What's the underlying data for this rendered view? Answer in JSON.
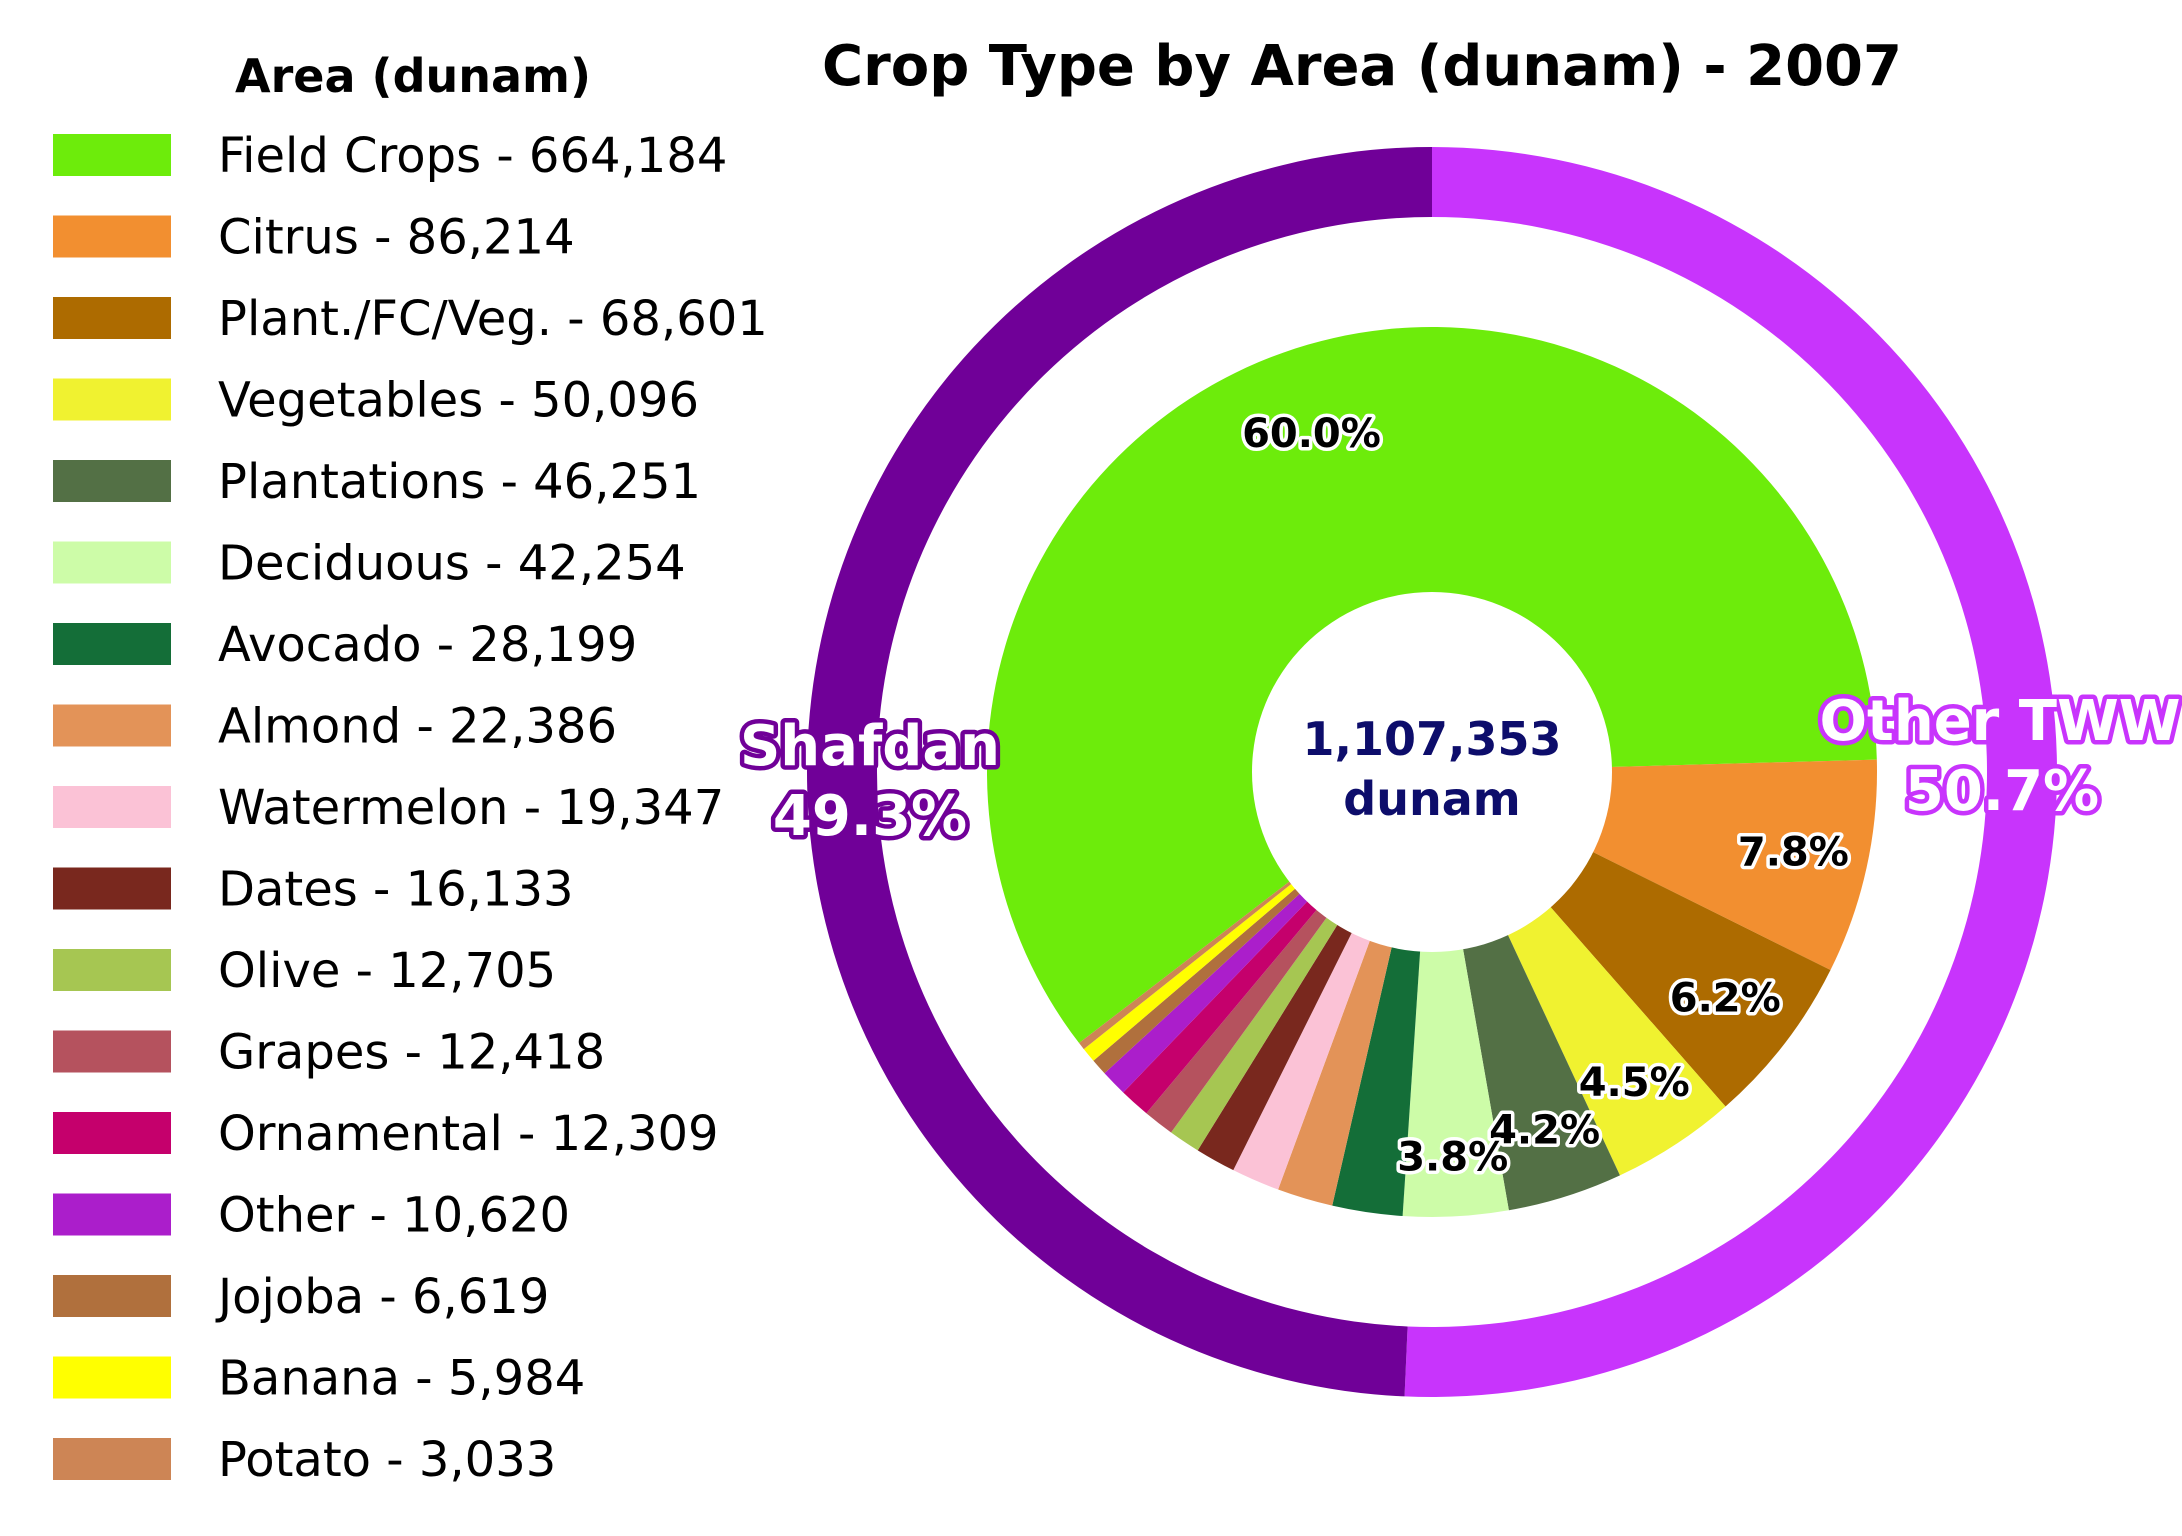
{
  "chart_data": {
    "type": "pie",
    "title": "Crop Type by Area (dunam) - 2007",
    "legend_title": "Area (dunam)",
    "legend_position": "left",
    "center_label": [
      "1,107,353",
      "dunam"
    ],
    "inner": {
      "slices": [
        {
          "label": "Field Crops - 664,184",
          "value": 664184,
          "color": "#6dec0b",
          "pct_label": "60.0%"
        },
        {
          "label": "Citrus - 86,214",
          "value": 86214,
          "color": "#f28f30",
          "pct_label": "7.8%"
        },
        {
          "label": "Plant./FC/Veg. - 68,601",
          "value": 68601,
          "color": "#ad6b00",
          "pct_label": "6.2%"
        },
        {
          "label": "Vegetables - 50,096",
          "value": 50096,
          "color": "#f0f230",
          "pct_label": "4.5%"
        },
        {
          "label": "Plantations - 46,251",
          "value": 46251,
          "color": "#537045",
          "pct_label": "4.2%"
        },
        {
          "label": "Deciduous - 42,254",
          "value": 42254,
          "color": "#cdfca8",
          "pct_label": "3.8%"
        },
        {
          "label": "Avocado - 28,199",
          "value": 28199,
          "color": "#146e38",
          "pct_label": ""
        },
        {
          "label": "Almond - 22,386",
          "value": 22386,
          "color": "#e39358",
          "pct_label": ""
        },
        {
          "label": "Watermelon - 19,347",
          "value": 19347,
          "color": "#fbc2d6",
          "pct_label": ""
        },
        {
          "label": "Dates - 16,133",
          "value": 16133,
          "color": "#79281e",
          "pct_label": ""
        },
        {
          "label": "Olive - 12,705",
          "value": 12705,
          "color": "#a6c652",
          "pct_label": ""
        },
        {
          "label": "Grapes - 12,418",
          "value": 12418,
          "color": "#b5525e",
          "pct_label": ""
        },
        {
          "label": "Ornamental - 12,309",
          "value": 12309,
          "color": "#c5006c",
          "pct_label": ""
        },
        {
          "label": "Other - 10,620",
          "value": 10620,
          "color": "#ab1ecb",
          "pct_label": ""
        },
        {
          "label": "Jojoba - 6,619",
          "value": 6619,
          "color": "#b0703d",
          "pct_label": ""
        },
        {
          "label": "Banana - 5,984",
          "value": 5984,
          "color": "#ffff00",
          "pct_label": ""
        },
        {
          "label": "Potato - 3,033",
          "value": 3033,
          "color": "#cd8555",
          "pct_label": ""
        }
      ]
    },
    "outer": {
      "slices": [
        {
          "name": "Other TWW",
          "value": 50.7,
          "pct_label": "50.7%",
          "color": "#c834fc"
        },
        {
          "name": "Shafdan",
          "value": 49.3,
          "pct_label": "49.3%",
          "color": "#700098"
        }
      ]
    }
  }
}
